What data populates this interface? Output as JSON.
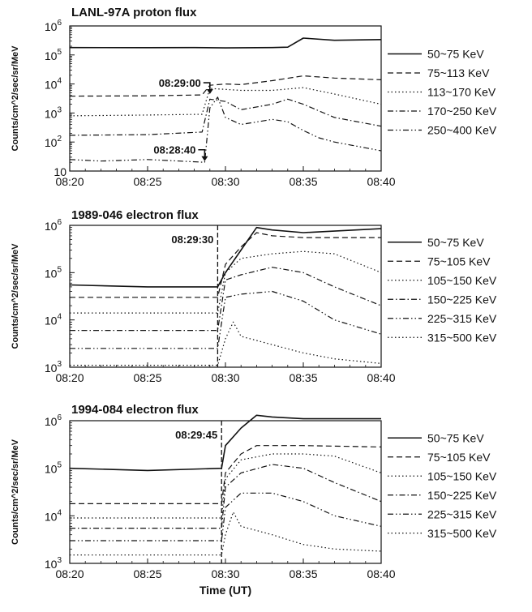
{
  "chart_data": [
    {
      "type": "line",
      "title": "LANL-97A proton flux",
      "ylabel": "Counts/cm^2/sec/sr/MeV",
      "xlabel": "",
      "yscale": "log",
      "ylim": [
        10,
        1000000
      ],
      "yticks": [
        {
          "value": 10,
          "label": "10"
        },
        {
          "value": 100,
          "label": "10",
          "exp": "2"
        },
        {
          "value": 1000,
          "label": "10",
          "exp": "3"
        },
        {
          "value": 10000,
          "label": "10",
          "exp": "4"
        },
        {
          "value": 100000,
          "label": "10",
          "exp": "5"
        },
        {
          "value": 1000000,
          "label": "10",
          "exp": "6"
        }
      ],
      "xlim": [
        "08:20",
        "08:40"
      ],
      "xticks": [
        "08:20",
        "08:25",
        "08:30",
        "08:35",
        "08:40"
      ],
      "series": [
        {
          "name": "50~75 KeV",
          "style": "solid",
          "x": [
            "08:20",
            "08:25",
            "08:28",
            "08:30",
            "08:33",
            "08:34",
            "08:35",
            "08:37",
            "08:40"
          ],
          "values": [
            180000,
            178000,
            180000,
            175000,
            180000,
            185000,
            380000,
            320000,
            340000
          ]
        },
        {
          "name": "75~113 KeV",
          "style": "dashed",
          "x": [
            "08:20",
            "08:25",
            "08:28:30",
            "08:29:00",
            "08:30",
            "08:31",
            "08:33",
            "08:35",
            "08:37",
            "08:40"
          ],
          "values": [
            3800,
            3900,
            4200,
            9000,
            10000,
            9500,
            13000,
            19000,
            16000,
            14000
          ]
        },
        {
          "name": "113~170 KeV",
          "style": "dotted",
          "x": [
            "08:20",
            "08:25",
            "08:28:30",
            "08:29:00",
            "08:30",
            "08:31",
            "08:33",
            "08:35",
            "08:37",
            "08:40"
          ],
          "values": [
            800,
            850,
            900,
            7000,
            6500,
            6000,
            6000,
            7500,
            4500,
            2000
          ]
        },
        {
          "name": "170~250 KeV",
          "style": "dashdot",
          "x": [
            "08:20",
            "08:25",
            "08:28:30",
            "08:29:00",
            "08:30",
            "08:31",
            "08:33",
            "08:34",
            "08:35",
            "08:37",
            "08:40"
          ],
          "values": [
            170,
            180,
            220,
            3000,
            2500,
            1300,
            2000,
            3000,
            2000,
            700,
            350
          ]
        },
        {
          "name": "250~400 KeV",
          "style": "dashdotdot",
          "x": [
            "08:20",
            "08:22",
            "08:25",
            "08:28:40",
            "08:29:00",
            "08:29:30",
            "08:30",
            "08:31",
            "08:33",
            "08:34",
            "08:35",
            "08:36",
            "08:37",
            "08:40"
          ],
          "values": [
            25,
            22,
            25,
            20,
            1500,
            3500,
            700,
            400,
            600,
            500,
            250,
            140,
            100,
            50
          ]
        }
      ],
      "annotations": [
        {
          "text": "08:29:00",
          "time": "08:29:00",
          "value": 4500
        },
        {
          "text": "08:28:40",
          "time": "08:28:40",
          "value": 22
        }
      ]
    },
    {
      "type": "line",
      "title": "1989-046 electron flux",
      "ylabel": "Counts/cm^2/sec/sr/MeV",
      "xlabel": "",
      "yscale": "log",
      "ylim": [
        1000,
        1000000
      ],
      "yticks": [
        {
          "value": 1000,
          "label": "10",
          "exp": "3"
        },
        {
          "value": 10000,
          "label": "10",
          "exp": "4"
        },
        {
          "value": 100000,
          "label": "10",
          "exp": "5"
        },
        {
          "value": 1000000,
          "label": "10",
          "exp": "6"
        }
      ],
      "xlim": [
        "08:20",
        "08:40"
      ],
      "xticks": [
        "08:20",
        "08:25",
        "08:30",
        "08:35",
        "08:40"
      ],
      "series": [
        {
          "name": "50~75 KeV",
          "style": "solid",
          "x": [
            "08:20",
            "08:25",
            "08:29:30",
            "08:30",
            "08:31",
            "08:32",
            "08:33",
            "08:35",
            "08:40"
          ],
          "values": [
            55000,
            50000,
            50000,
            100000,
            300000,
            900000,
            800000,
            700000,
            850000
          ]
        },
        {
          "name": "75~105 KeV",
          "style": "dashed",
          "x": [
            "08:20",
            "08:25",
            "08:29:30",
            "08:30",
            "08:31",
            "08:32",
            "08:33",
            "08:35",
            "08:40"
          ],
          "values": [
            30000,
            30000,
            30000,
            150000,
            350000,
            700000,
            600000,
            550000,
            550000
          ]
        },
        {
          "name": "105~150 KeV",
          "style": "dotted",
          "x": [
            "08:20",
            "08:25",
            "08:29:30",
            "08:30",
            "08:31",
            "08:33",
            "08:35",
            "08:37",
            "08:40"
          ],
          "values": [
            14000,
            14000,
            14000,
            100000,
            200000,
            250000,
            280000,
            250000,
            100000
          ]
        },
        {
          "name": "150~225 KeV",
          "style": "dashdot",
          "x": [
            "08:20",
            "08:25",
            "08:29:30",
            "08:30",
            "08:31",
            "08:33",
            "08:35",
            "08:37",
            "08:40"
          ],
          "values": [
            6000,
            6000,
            6000,
            70000,
            90000,
            130000,
            100000,
            50000,
            20000
          ]
        },
        {
          "name": "225~315 KeV",
          "style": "dashdotdot",
          "x": [
            "08:20",
            "08:25",
            "08:29:30",
            "08:30",
            "08:31",
            "08:33",
            "08:35",
            "08:37",
            "08:40"
          ],
          "values": [
            2500,
            2500,
            2500,
            30000,
            35000,
            40000,
            25000,
            10000,
            5000
          ]
        },
        {
          "name": "315~500 KeV",
          "style": "dotted",
          "x": [
            "08:20",
            "08:25",
            "08:29:30",
            "08:30",
            "08:30:30",
            "08:31",
            "08:33",
            "08:35",
            "08:37",
            "08:40"
          ],
          "values": [
            1100,
            1100,
            1100,
            4000,
            9000,
            4500,
            3000,
            2000,
            1500,
            1200
          ]
        }
      ],
      "annotations": [
        {
          "text": "08:29:30",
          "time": "08:29:30",
          "kind": "vline"
        }
      ]
    },
    {
      "type": "line",
      "title": "1994-084 electron flux",
      "ylabel": "Counts/cm^2/sec/sr/MeV",
      "xlabel": "Time (UT)",
      "yscale": "log",
      "ylim": [
        1000,
        1000000
      ],
      "yticks": [
        {
          "value": 1000,
          "label": "10",
          "exp": "3"
        },
        {
          "value": 10000,
          "label": "10",
          "exp": "4"
        },
        {
          "value": 100000,
          "label": "10",
          "exp": "5"
        },
        {
          "value": 1000000,
          "label": "10",
          "exp": "6"
        }
      ],
      "xlim": [
        "08:20",
        "08:40"
      ],
      "xticks": [
        "08:20",
        "08:25",
        "08:30",
        "08:35",
        "08:40"
      ],
      "series": [
        {
          "name": "50~75 KeV",
          "style": "solid",
          "x": [
            "08:20",
            "08:25",
            "08:29:45",
            "08:30",
            "08:31",
            "08:32",
            "08:33",
            "08:35",
            "08:40"
          ],
          "values": [
            100000,
            90000,
            100000,
            300000,
            700000,
            1300000,
            1200000,
            1100000,
            1100000
          ]
        },
        {
          "name": "75~105 KeV",
          "style": "dashed",
          "x": [
            "08:20",
            "08:25",
            "08:29:45",
            "08:30",
            "08:31",
            "08:32",
            "08:35",
            "08:40"
          ],
          "values": [
            18000,
            18000,
            18000,
            80000,
            200000,
            300000,
            300000,
            280000
          ]
        },
        {
          "name": "105~150 KeV",
          "style": "dotted",
          "x": [
            "08:20",
            "08:25",
            "08:29:45",
            "08:30",
            "08:31",
            "08:33",
            "08:35",
            "08:37",
            "08:40"
          ],
          "values": [
            9000,
            9000,
            9000,
            60000,
            150000,
            200000,
            200000,
            180000,
            80000
          ]
        },
        {
          "name": "150~225 KeV",
          "style": "dashdot",
          "x": [
            "08:20",
            "08:25",
            "08:29:45",
            "08:30",
            "08:31",
            "08:33",
            "08:35",
            "08:37",
            "08:40"
          ],
          "values": [
            5500,
            5500,
            5500,
            40000,
            80000,
            120000,
            100000,
            50000,
            20000
          ]
        },
        {
          "name": "225~315 KeV",
          "style": "dashdotdot",
          "x": [
            "08:20",
            "08:25",
            "08:29:45",
            "08:30",
            "08:31",
            "08:33",
            "08:35",
            "08:37",
            "08:40"
          ],
          "values": [
            3000,
            3000,
            3000,
            15000,
            30000,
            30000,
            20000,
            10000,
            6000
          ]
        },
        {
          "name": "315~500 KeV",
          "style": "dotted",
          "x": [
            "08:20",
            "08:25",
            "08:29:45",
            "08:30",
            "08:30:30",
            "08:31",
            "08:33",
            "08:35",
            "08:37",
            "08:40"
          ],
          "values": [
            1500,
            1500,
            1500,
            4000,
            12000,
            6000,
            4000,
            2500,
            2000,
            1800
          ]
        }
      ],
      "annotations": [
        {
          "text": "08:29:45",
          "time": "08:29:45",
          "kind": "vline"
        }
      ]
    }
  ]
}
